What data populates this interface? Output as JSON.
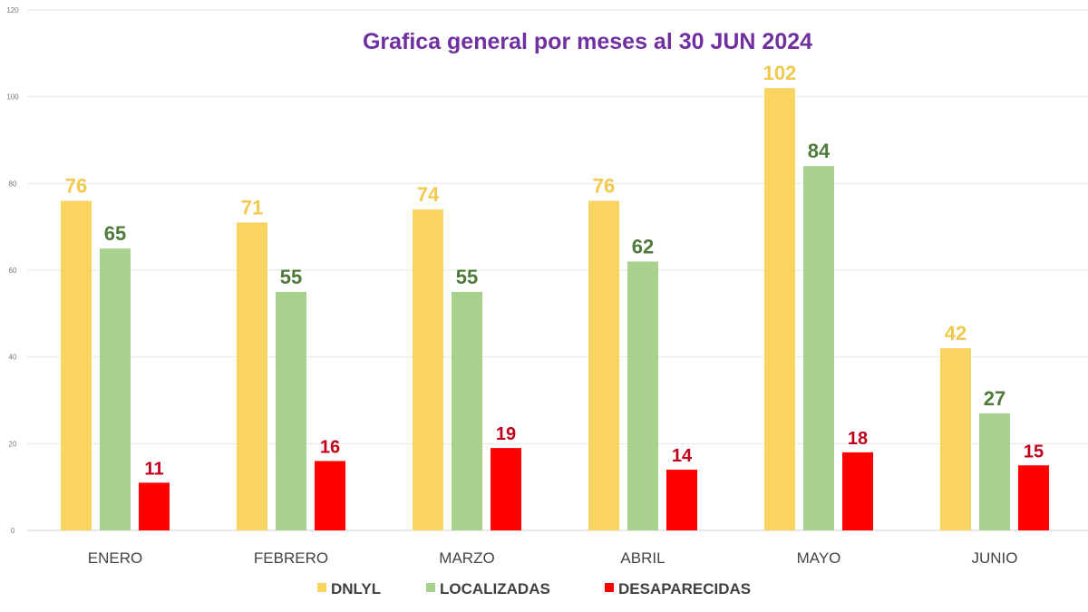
{
  "chart_data": {
    "type": "bar",
    "title": "Grafica general por meses al 30 JUN 2024",
    "categories": [
      "ENERO",
      "FEBRERO",
      "MARZO",
      "ABRIL",
      "MAYO",
      "JUNIO"
    ],
    "series": [
      {
        "name": "DNLYL",
        "values": [
          76,
          71,
          74,
          76,
          102,
          42
        ],
        "color": "#F9D463",
        "label_color": "#F2C94C"
      },
      {
        "name": "LOCALIZADAS",
        "values": [
          65,
          55,
          55,
          62,
          84,
          27
        ],
        "color": "#A9D18E",
        "label_color": "#4E7A3A"
      },
      {
        "name": "DESAPARECIDAS",
        "values": [
          11,
          16,
          19,
          14,
          18,
          15
        ],
        "color": "#FF0000",
        "label_color": "#C0001A"
      }
    ],
    "ylim": [
      0,
      120
    ],
    "yticks": [
      0,
      20,
      40,
      60,
      80,
      100,
      120
    ],
    "grid": true,
    "legend": "bottom",
    "title_color": "#7030A0"
  }
}
